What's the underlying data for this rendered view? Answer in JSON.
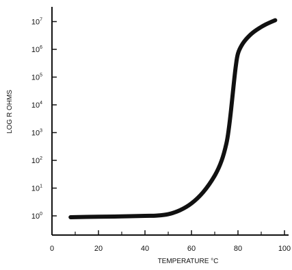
{
  "chart_data": {
    "type": "line",
    "title": "",
    "xlabel": "TEMPERATURE °C",
    "ylabel": "LOG R OHMS",
    "xlim": [
      0,
      100
    ],
    "ylim": [
      -0.35,
      7.4
    ],
    "y_scale": "log10",
    "grid": false,
    "x_ticks": [
      0,
      20,
      40,
      60,
      80,
      100
    ],
    "x_minor_ticks": [
      10,
      30,
      50,
      70,
      90
    ],
    "y_ticks": [
      0,
      1,
      2,
      3,
      4,
      5,
      6,
      7
    ],
    "x_tick_labels": [
      "0",
      "20",
      "40",
      "60",
      "80",
      "100"
    ],
    "y_tick_labels": [
      {
        "base": "10",
        "exp": "0"
      },
      {
        "base": "10",
        "exp": "1"
      },
      {
        "base": "10",
        "exp": "2"
      },
      {
        "base": "10",
        "exp": "3"
      },
      {
        "base": "10",
        "exp": "4"
      },
      {
        "base": "10",
        "exp": "5"
      },
      {
        "base": "10",
        "exp": "6"
      },
      {
        "base": "10",
        "exp": "7"
      }
    ],
    "series": [
      {
        "color": "#111111",
        "x": [
          8,
          20,
          30,
          40,
          45,
          50,
          55,
          60,
          65,
          70,
          73,
          75,
          76,
          77,
          78,
          79,
          80,
          82,
          85,
          88,
          92,
          96
        ],
        "y": [
          -0.05,
          -0.03,
          -0.02,
          0.0,
          0.01,
          0.06,
          0.2,
          0.45,
          0.85,
          1.45,
          2.0,
          2.6,
          3.1,
          3.8,
          4.6,
          5.35,
          5.85,
          6.2,
          6.5,
          6.7,
          6.9,
          7.05
        ]
      }
    ]
  }
}
